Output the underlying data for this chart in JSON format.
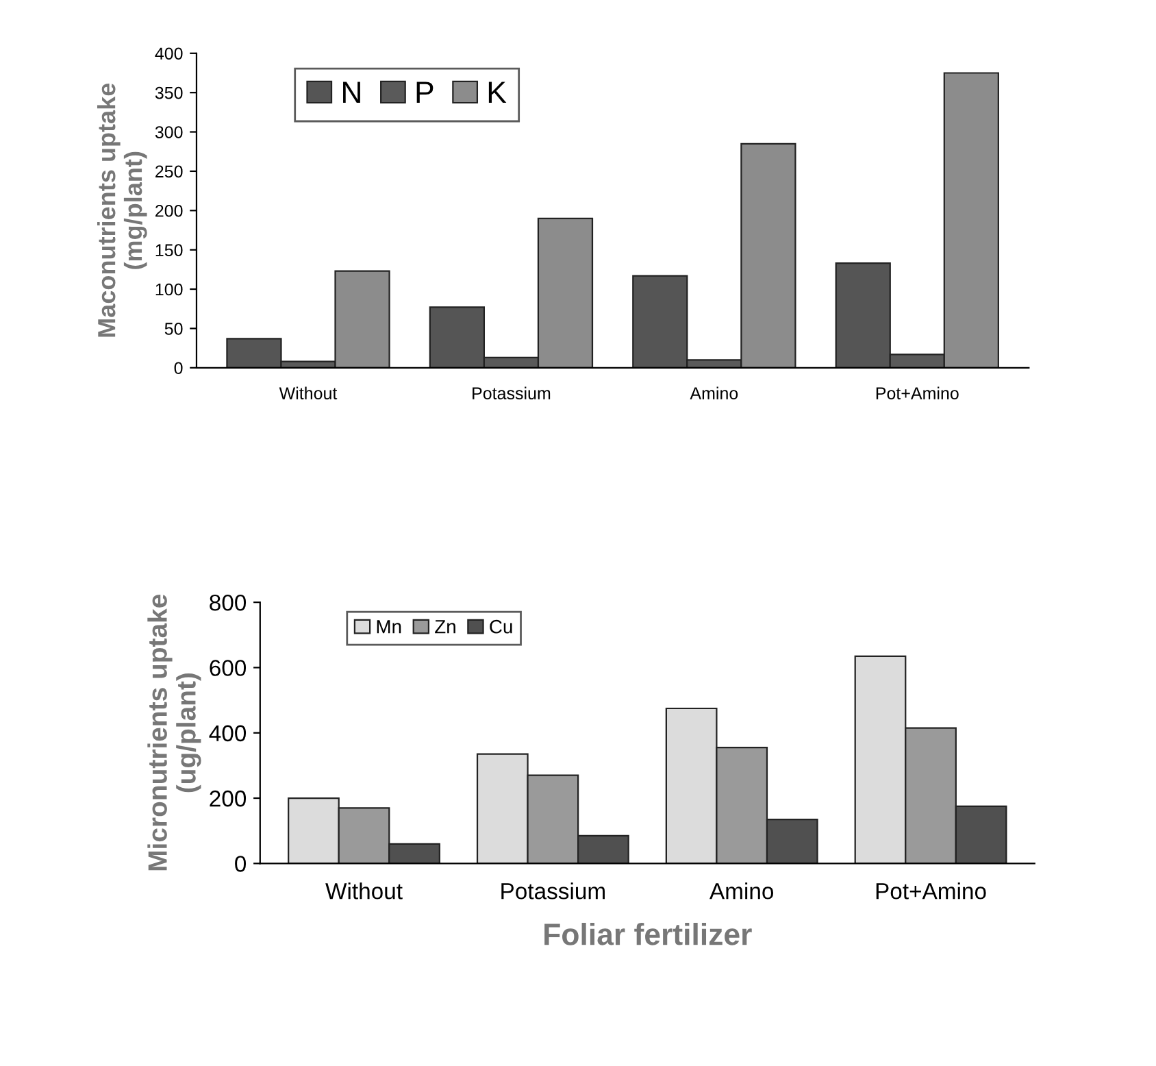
{
  "chart_data": [
    {
      "type": "bar",
      "ylabel": "Maconutrients uptake\n(mg/plant)",
      "categories": [
        "Without",
        "Potassium",
        "Amino",
        "Pot+Amino"
      ],
      "ylim": [
        0,
        400
      ],
      "yticks": [
        0,
        50,
        100,
        150,
        200,
        250,
        300,
        350,
        400
      ],
      "legend": "top left",
      "grid": false,
      "series": [
        {
          "name": "N",
          "color": "#555555",
          "values": [
            37,
            77,
            117,
            133
          ]
        },
        {
          "name": "P",
          "color": "#5a5a5a",
          "values": [
            8,
            13,
            10,
            17
          ]
        },
        {
          "name": "K",
          "color": "#8c8c8c",
          "values": [
            123,
            190,
            285,
            375
          ]
        }
      ]
    },
    {
      "type": "bar",
      "ylabel": "Micronutrients uptake\n(ug/plant)",
      "xlabel": "Foliar fertilizer",
      "categories": [
        "Without",
        "Potassium",
        "Amino",
        "Pot+Amino"
      ],
      "ylim": [
        0,
        800
      ],
      "yticks": [
        0,
        200,
        400,
        600,
        800
      ],
      "legend": "top left",
      "grid": false,
      "series": [
        {
          "name": "Mn",
          "color": "#dcdcdc",
          "values": [
            200,
            335,
            475,
            635
          ]
        },
        {
          "name": "Zn",
          "color": "#9a9a9a",
          "values": [
            170,
            270,
            355,
            415
          ]
        },
        {
          "name": "Cu",
          "color": "#505050",
          "values": [
            60,
            85,
            135,
            175
          ]
        }
      ]
    }
  ]
}
